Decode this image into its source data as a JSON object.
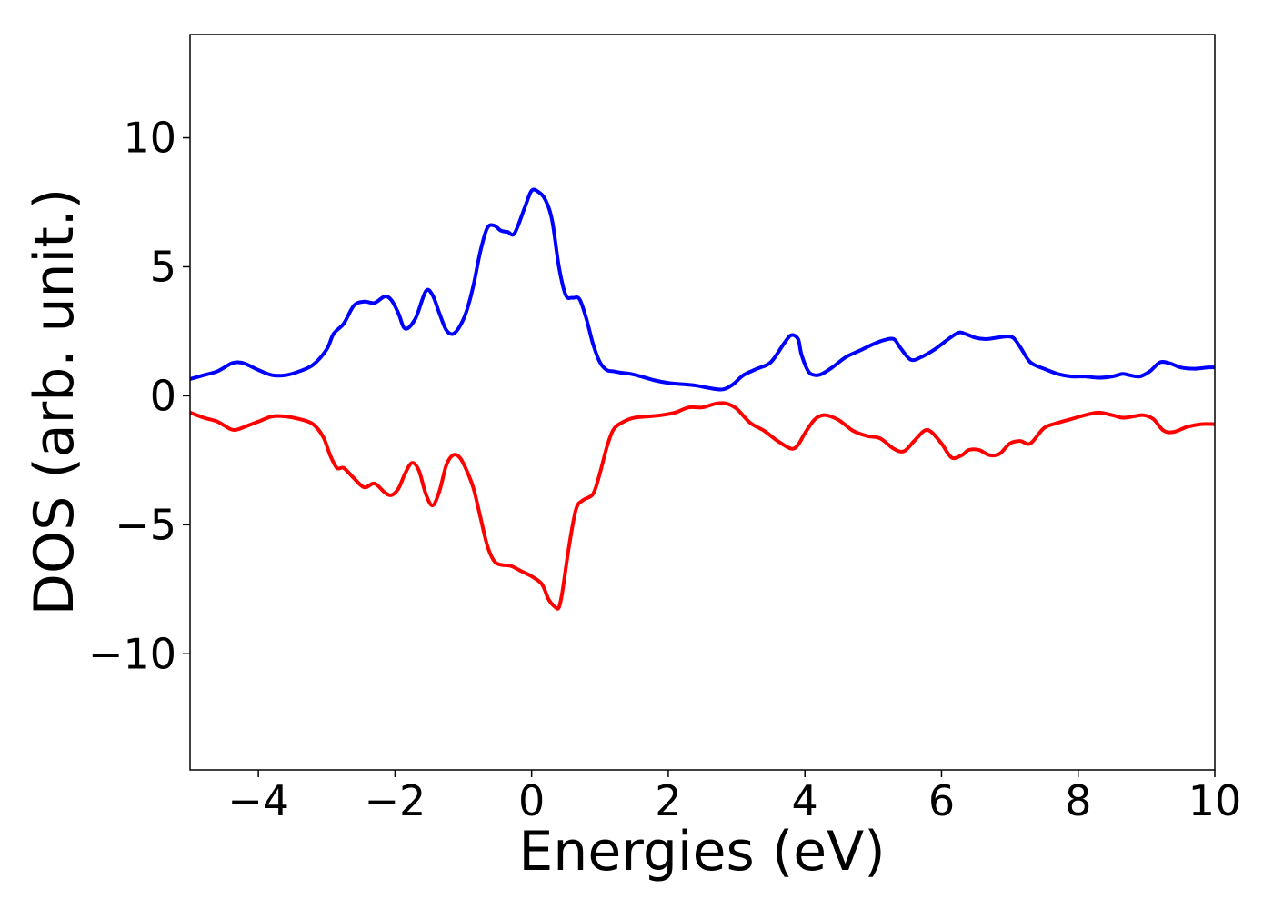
{
  "chart_data": {
    "type": "line",
    "title": "",
    "xlabel": "Energies (eV)",
    "ylabel": "DOS (arb. unit.)",
    "xlim": [
      -5,
      10
    ],
    "ylim": [
      -14.5,
      14
    ],
    "xticks": [
      -4,
      -2,
      0,
      2,
      4,
      6,
      8,
      10
    ],
    "xtick_labels": [
      "−4",
      "−2",
      "0",
      "2",
      "4",
      "6",
      "8",
      "10"
    ],
    "yticks": [
      -10,
      -5,
      0,
      5,
      10
    ],
    "ytick_labels": [
      "−10",
      "−5",
      "0",
      "5",
      "10"
    ],
    "grid": false,
    "legend": "none",
    "series": [
      {
        "color": "#0000ff",
        "x": [
          -5.0,
          -4.8,
          -4.6,
          -4.4,
          -4.3,
          -4.2,
          -4.0,
          -3.8,
          -3.6,
          -3.4,
          -3.2,
          -3.0,
          -2.9,
          -2.75,
          -2.6,
          -2.45,
          -2.3,
          -2.15,
          -2.05,
          -1.95,
          -1.85,
          -1.7,
          -1.55,
          -1.45,
          -1.35,
          -1.25,
          -1.15,
          -1.05,
          -0.95,
          -0.85,
          -0.75,
          -0.65,
          -0.55,
          -0.45,
          -0.35,
          -0.25,
          -0.1,
          0.0,
          0.1,
          0.2,
          0.3,
          0.4,
          0.5,
          0.6,
          0.7,
          0.8,
          0.9,
          1.0,
          1.1,
          1.2,
          1.3,
          1.45,
          1.6,
          1.8,
          2.0,
          2.2,
          2.4,
          2.6,
          2.8,
          2.95,
          3.1,
          3.3,
          3.5,
          3.7,
          3.8,
          3.9,
          3.95,
          4.05,
          4.15,
          4.25,
          4.4,
          4.6,
          4.8,
          5.0,
          5.15,
          5.3,
          5.4,
          5.55,
          5.7,
          5.9,
          6.1,
          6.25,
          6.35,
          6.5,
          6.65,
          6.8,
          6.95,
          7.05,
          7.15,
          7.3,
          7.5,
          7.7,
          7.9,
          8.1,
          8.3,
          8.5,
          8.65,
          8.75,
          8.9,
          9.05,
          9.2,
          9.35,
          9.5,
          9.7,
          9.9,
          10.0
        ],
        "y": [
          0.65,
          0.8,
          0.95,
          1.25,
          1.3,
          1.25,
          1.0,
          0.8,
          0.8,
          0.95,
          1.2,
          1.8,
          2.4,
          2.8,
          3.5,
          3.65,
          3.6,
          3.85,
          3.7,
          3.2,
          2.6,
          3.0,
          4.05,
          3.9,
          3.2,
          2.55,
          2.4,
          2.7,
          3.3,
          4.3,
          5.6,
          6.5,
          6.6,
          6.4,
          6.35,
          6.3,
          7.3,
          7.95,
          7.9,
          7.6,
          6.8,
          5.0,
          3.9,
          3.8,
          3.75,
          3.0,
          2.0,
          1.3,
          1.0,
          0.95,
          0.9,
          0.85,
          0.75,
          0.6,
          0.5,
          0.45,
          0.4,
          0.3,
          0.25,
          0.45,
          0.8,
          1.05,
          1.3,
          2.05,
          2.35,
          2.2,
          1.6,
          0.95,
          0.8,
          0.85,
          1.1,
          1.5,
          1.75,
          2.0,
          2.15,
          2.2,
          1.85,
          1.4,
          1.5,
          1.8,
          2.2,
          2.45,
          2.4,
          2.25,
          2.2,
          2.25,
          2.3,
          2.25,
          1.9,
          1.3,
          1.05,
          0.85,
          0.75,
          0.75,
          0.7,
          0.75,
          0.85,
          0.8,
          0.75,
          0.95,
          1.3,
          1.25,
          1.1,
          1.05,
          1.1,
          1.1
        ]
      },
      {
        "color": "#ff0000",
        "x": [
          -5.0,
          -4.8,
          -4.6,
          -4.4,
          -4.3,
          -4.2,
          -4.0,
          -3.8,
          -3.6,
          -3.4,
          -3.2,
          -3.05,
          -2.95,
          -2.85,
          -2.75,
          -2.6,
          -2.45,
          -2.3,
          -2.15,
          -2.05,
          -1.95,
          -1.85,
          -1.75,
          -1.65,
          -1.55,
          -1.45,
          -1.35,
          -1.25,
          -1.15,
          -1.05,
          -0.95,
          -0.85,
          -0.75,
          -0.65,
          -0.55,
          -0.45,
          -0.3,
          -0.15,
          0.0,
          0.15,
          0.25,
          0.35,
          0.4,
          0.45,
          0.55,
          0.65,
          0.75,
          0.9,
          1.0,
          1.1,
          1.2,
          1.35,
          1.5,
          1.7,
          1.9,
          2.1,
          2.3,
          2.5,
          2.7,
          2.85,
          3.0,
          3.2,
          3.4,
          3.6,
          3.8,
          3.9,
          4.0,
          4.15,
          4.3,
          4.5,
          4.7,
          4.9,
          5.1,
          5.3,
          5.45,
          5.6,
          5.75,
          5.85,
          6.0,
          6.15,
          6.3,
          6.4,
          6.55,
          6.7,
          6.85,
          7.0,
          7.15,
          7.3,
          7.5,
          7.7,
          7.9,
          8.1,
          8.3,
          8.5,
          8.65,
          8.8,
          8.95,
          9.1,
          9.25,
          9.4,
          9.6,
          9.8,
          10.0
        ],
        "y": [
          -0.65,
          -0.85,
          -1.0,
          -1.3,
          -1.3,
          -1.2,
          -1.0,
          -0.8,
          -0.8,
          -0.9,
          -1.1,
          -1.6,
          -2.3,
          -2.8,
          -2.8,
          -3.2,
          -3.55,
          -3.4,
          -3.75,
          -3.85,
          -3.6,
          -3.0,
          -2.6,
          -2.9,
          -3.8,
          -4.25,
          -3.7,
          -2.7,
          -2.3,
          -2.4,
          -2.9,
          -3.6,
          -4.7,
          -5.8,
          -6.4,
          -6.55,
          -6.6,
          -6.8,
          -7.0,
          -7.3,
          -7.9,
          -8.2,
          -8.2,
          -7.6,
          -5.8,
          -4.4,
          -4.05,
          -3.8,
          -3.0,
          -2.0,
          -1.3,
          -1.0,
          -0.85,
          -0.8,
          -0.75,
          -0.65,
          -0.45,
          -0.45,
          -0.3,
          -0.3,
          -0.5,
          -1.05,
          -1.35,
          -1.75,
          -2.05,
          -1.9,
          -1.45,
          -0.9,
          -0.75,
          -0.95,
          -1.35,
          -1.55,
          -1.65,
          -2.05,
          -2.15,
          -1.75,
          -1.35,
          -1.4,
          -1.85,
          -2.4,
          -2.3,
          -2.1,
          -2.1,
          -2.3,
          -2.25,
          -1.85,
          -1.75,
          -1.85,
          -1.25,
          -1.05,
          -0.9,
          -0.75,
          -0.65,
          -0.75,
          -0.85,
          -0.8,
          -0.75,
          -0.9,
          -1.35,
          -1.4,
          -1.2,
          -1.1,
          -1.1
        ]
      }
    ]
  }
}
